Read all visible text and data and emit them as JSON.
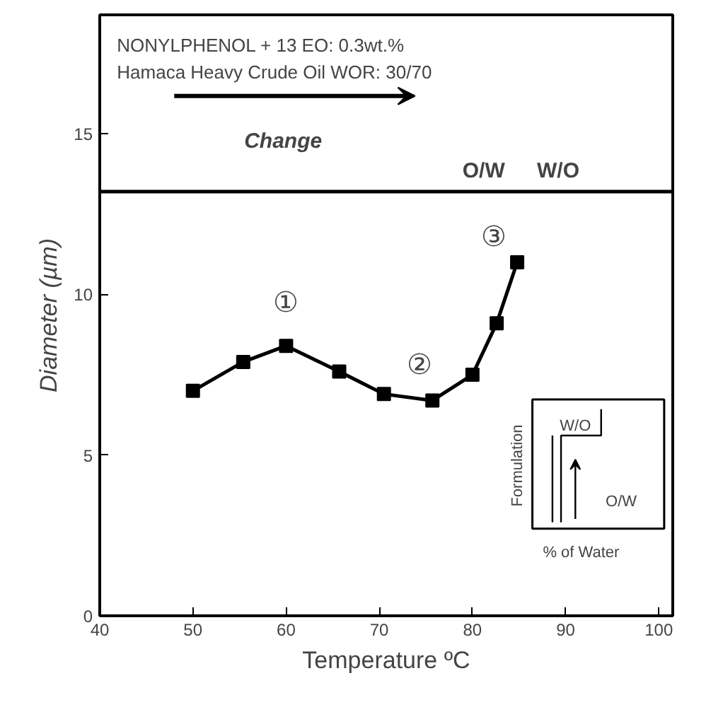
{
  "chart_data": {
    "type": "line",
    "xlabel": "Temperature ºC",
    "ylabel": "Diameter (µm)",
    "x": [
      50,
      55.4,
      60,
      65.7,
      70.5,
      75.7,
      80,
      82.6,
      84.8
    ],
    "series": [
      {
        "color": "#000000",
        "values": [
          7.0,
          7.9,
          8.4,
          7.6,
          6.9,
          6.7,
          7.5,
          9.1,
          11.0
        ]
      }
    ],
    "marker": "square",
    "line_style": "solid",
    "grid": false,
    "xlim": [
      40,
      101.5
    ],
    "ylim": [
      0,
      18.7
    ],
    "xticks": [
      40,
      50,
      60,
      70,
      80,
      90,
      100
    ],
    "yticks": [
      0,
      5,
      10,
      15
    ],
    "ref_lines": [
      {
        "axis": "y",
        "value": 13.2
      }
    ],
    "annotations": [
      "NONYLPHENOL + 13 EO: 0.3wt.%",
      "Hamaca Heavy Crude Oil   WOR: 30/70",
      "Change",
      "W/O",
      "O/W",
      "Formulation",
      "% of Water",
      "O/W",
      "W/O",
      "①",
      "②",
      "③"
    ]
  }
}
